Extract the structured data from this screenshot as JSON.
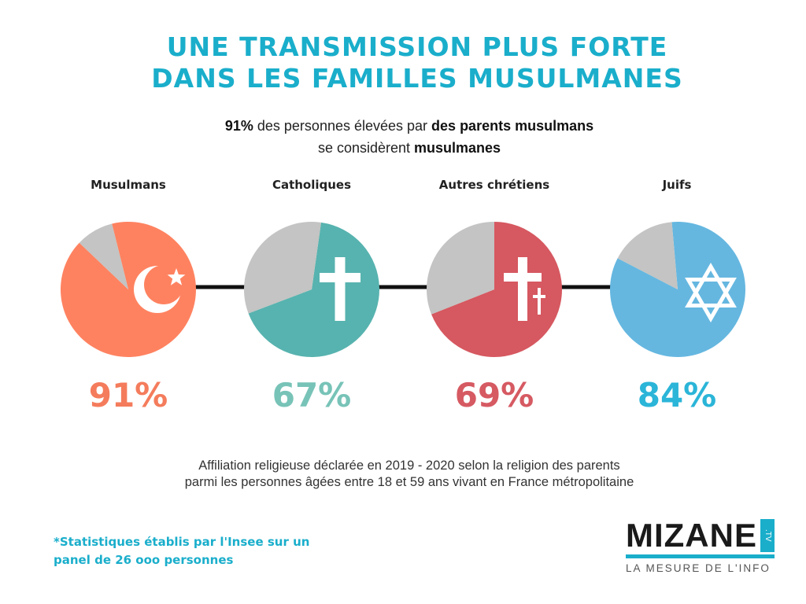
{
  "title": {
    "line1": "UNE TRANSMISSION PLUS FORTE",
    "line2": "DANS LES FAMILLES MUSULMANES"
  },
  "subtitle": {
    "part1": "91%",
    "part2": " des personnes élevées par ",
    "part3": "des parents musulmans",
    "part4": "se considèrent ",
    "part5": "musulmanes"
  },
  "chart_data": {
    "type": "pie",
    "remainder_color": "#c3c4c3",
    "categories": [
      "Musulmans",
      "Catholiques",
      "Autres chrétiens",
      "Juifs"
    ],
    "values": [
      91,
      67,
      69,
      84
    ],
    "labels": [
      "91%",
      "67%",
      "69%",
      "84%"
    ],
    "colors": [
      "#ff8260",
      "#57b3af",
      "#d65860",
      "#65b7e0"
    ],
    "label_colors": [
      "#f47c5c",
      "#78c3b8",
      "#d65a62",
      "#2bb5d8"
    ],
    "icons": [
      "crescent-star-icon",
      "cross-icon",
      "double-cross-icon",
      "star-of-david-icon"
    ]
  },
  "note": {
    "line1": "Affiliation religieuse déclarée en 2019 - 2020 selon la religion des parents",
    "line2": "parmi les personnes âgées entre 18 et 59 ans vivant en France métropolitaine"
  },
  "footnote": {
    "line1": "*Statistiques établis par l'Insee sur un",
    "line2": "panel de 26 ooo personnes"
  },
  "logo": {
    "name": "MIZANE",
    "tv": ".TV",
    "tagline": "LA MESURE DE L'INFO"
  }
}
